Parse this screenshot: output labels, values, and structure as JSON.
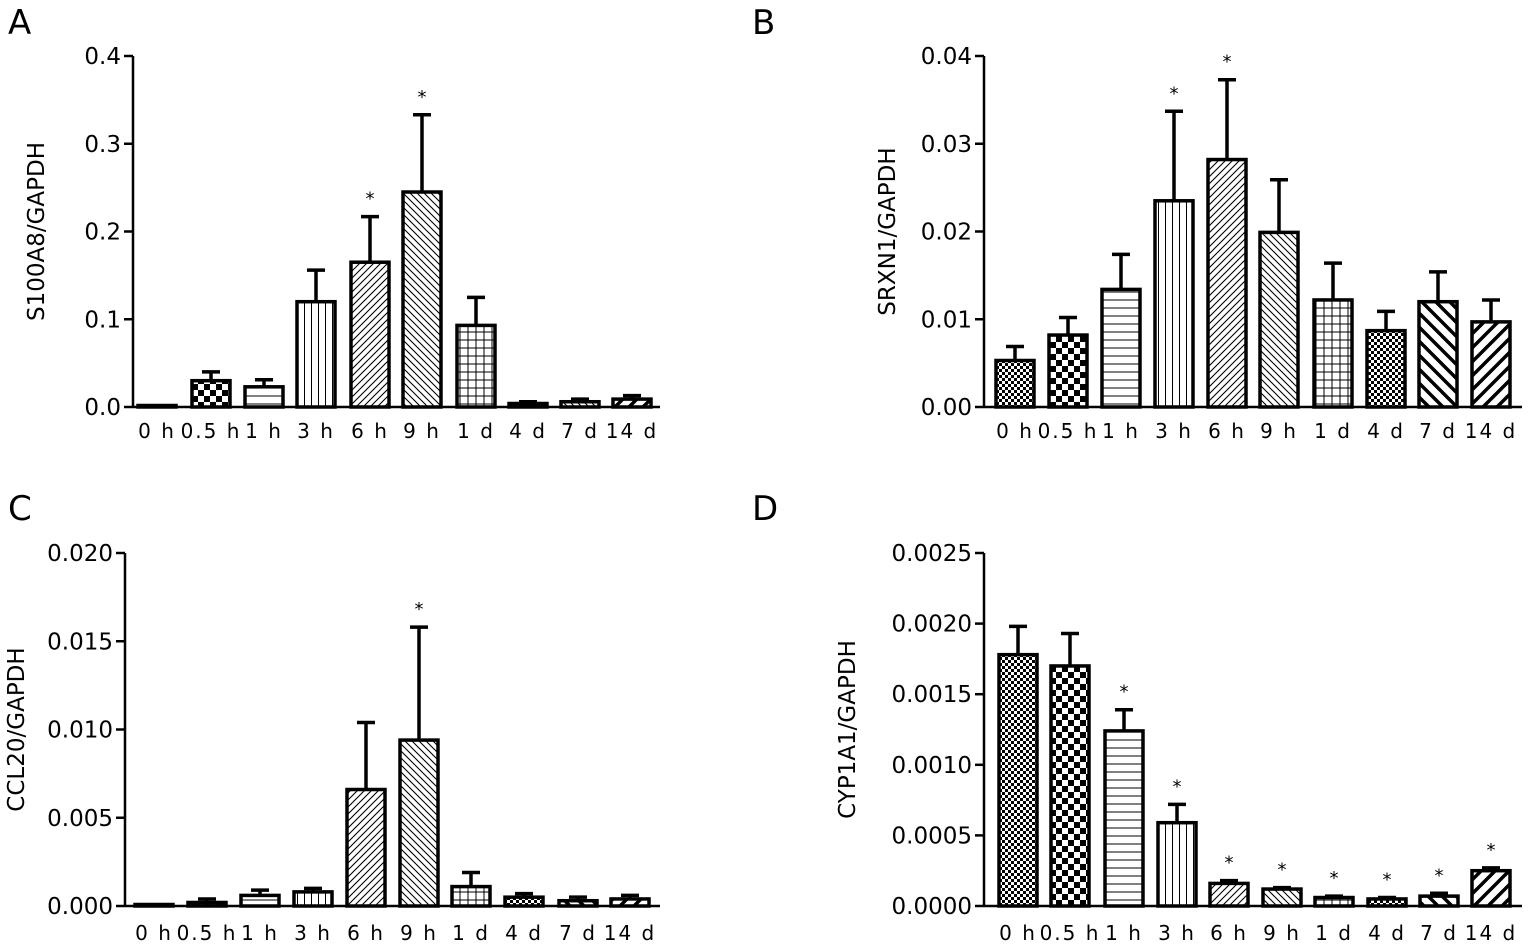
{
  "chart_data": [
    {
      "type": "bar",
      "panel_label": "A",
      "ylabel": "S100A8/GAPDH",
      "ylim": [
        0,
        0.4
      ],
      "yticks": [
        "0.0",
        "0.1",
        "0.2",
        "0.3",
        "0.4"
      ],
      "categories": [
        "0 h",
        "0.5 h",
        "1 h",
        "3 h",
        "6 h",
        "9 h",
        "1 d",
        "4 d",
        "7 d",
        "14 d"
      ],
      "values": [
        0.0,
        0.03,
        0.023,
        0.12,
        0.165,
        0.245,
        0.093,
        0.004,
        0.006,
        0.009
      ],
      "errors": [
        0.0,
        0.01,
        0.008,
        0.036,
        0.052,
        0.088,
        0.032,
        0.002,
        0.003,
        0.004
      ],
      "significant": [
        false,
        false,
        false,
        false,
        true,
        true,
        false,
        false,
        false,
        false
      ],
      "significance_marker": "*",
      "patterns": [
        "none",
        "check",
        "hlines",
        "vlines",
        "diag",
        "rdiag",
        "grid",
        "dots",
        "rdiag",
        "diagw"
      ]
    },
    {
      "type": "bar",
      "panel_label": "B",
      "ylabel": "SRXN1/GAPDH",
      "ylim": [
        0,
        0.04
      ],
      "yticks": [
        "0.00",
        "0.01",
        "0.02",
        "0.03",
        "0.04"
      ],
      "categories": [
        "0 h",
        "0.5 h",
        "1 h",
        "3 h",
        "6 h",
        "9 h",
        "1 d",
        "4 d",
        "7 d",
        "14 d"
      ],
      "values": [
        0.0053,
        0.0082,
        0.0134,
        0.0235,
        0.0282,
        0.0199,
        0.0122,
        0.0087,
        0.012,
        0.0097
      ],
      "errors": [
        0.0016,
        0.002,
        0.004,
        0.0102,
        0.0091,
        0.006,
        0.0042,
        0.0022,
        0.0034,
        0.0025
      ],
      "significant": [
        false,
        false,
        false,
        true,
        true,
        false,
        false,
        false,
        false,
        false
      ],
      "significance_marker": "*",
      "patterns": [
        "dots",
        "check",
        "hlines",
        "vlines",
        "diag",
        "rdiag",
        "grid",
        "dots",
        "rdiagw",
        "diagw"
      ]
    },
    {
      "type": "bar",
      "panel_label": "C",
      "ylabel": "CCL20/GAPDH",
      "ylim": [
        0,
        0.02
      ],
      "yticks": [
        "0.000",
        "0.005",
        "0.010",
        "0.015",
        "0.020"
      ],
      "categories": [
        "0 h",
        "0.5 h",
        "1 h",
        "3 h",
        "6 h",
        "9 h",
        "1 d",
        "4 d",
        "7 d",
        "14 d"
      ],
      "values": [
        0.0,
        0.0002,
        0.0006,
        0.0008,
        0.0066,
        0.0094,
        0.0011,
        0.0005,
        0.0003,
        0.0004
      ],
      "errors": [
        0.0,
        0.0002,
        0.0003,
        0.0002,
        0.0038,
        0.0064,
        0.0008,
        0.0002,
        0.0002,
        0.0002
      ],
      "significant": [
        false,
        false,
        false,
        false,
        false,
        true,
        false,
        false,
        false,
        false
      ],
      "significance_marker": "*",
      "patterns": [
        "none",
        "check",
        "hlines",
        "vlines",
        "diag",
        "rdiag",
        "grid",
        "dots",
        "rdiagw",
        "diagw"
      ]
    },
    {
      "type": "bar",
      "panel_label": "D",
      "ylabel": "CYP1A1/GAPDH",
      "ylim": [
        0,
        0.0025
      ],
      "yticks": [
        "0.0000",
        "0.0005",
        "0.0010",
        "0.0015",
        "0.0020",
        "0.0025"
      ],
      "categories": [
        "0 h",
        "0.5 h",
        "1 h",
        "3 h",
        "6 h",
        "9 h",
        "1 d",
        "4 d",
        "7 d",
        "14 d"
      ],
      "values": [
        0.00178,
        0.0017,
        0.00124,
        0.00059,
        0.00016,
        0.00012,
        6e-05,
        5e-05,
        7e-05,
        0.00025
      ],
      "errors": [
        0.0002,
        0.00023,
        0.00015,
        0.00013,
        2e-05,
        1e-05,
        1e-05,
        1e-05,
        2e-05,
        2e-05
      ],
      "significant": [
        false,
        false,
        true,
        true,
        true,
        true,
        true,
        true,
        true,
        true
      ],
      "significance_marker": "*",
      "patterns": [
        "dots",
        "check",
        "hlines",
        "vlines",
        "diag",
        "rdiag",
        "grid",
        "dots",
        "rdiagw",
        "diagw"
      ]
    }
  ]
}
